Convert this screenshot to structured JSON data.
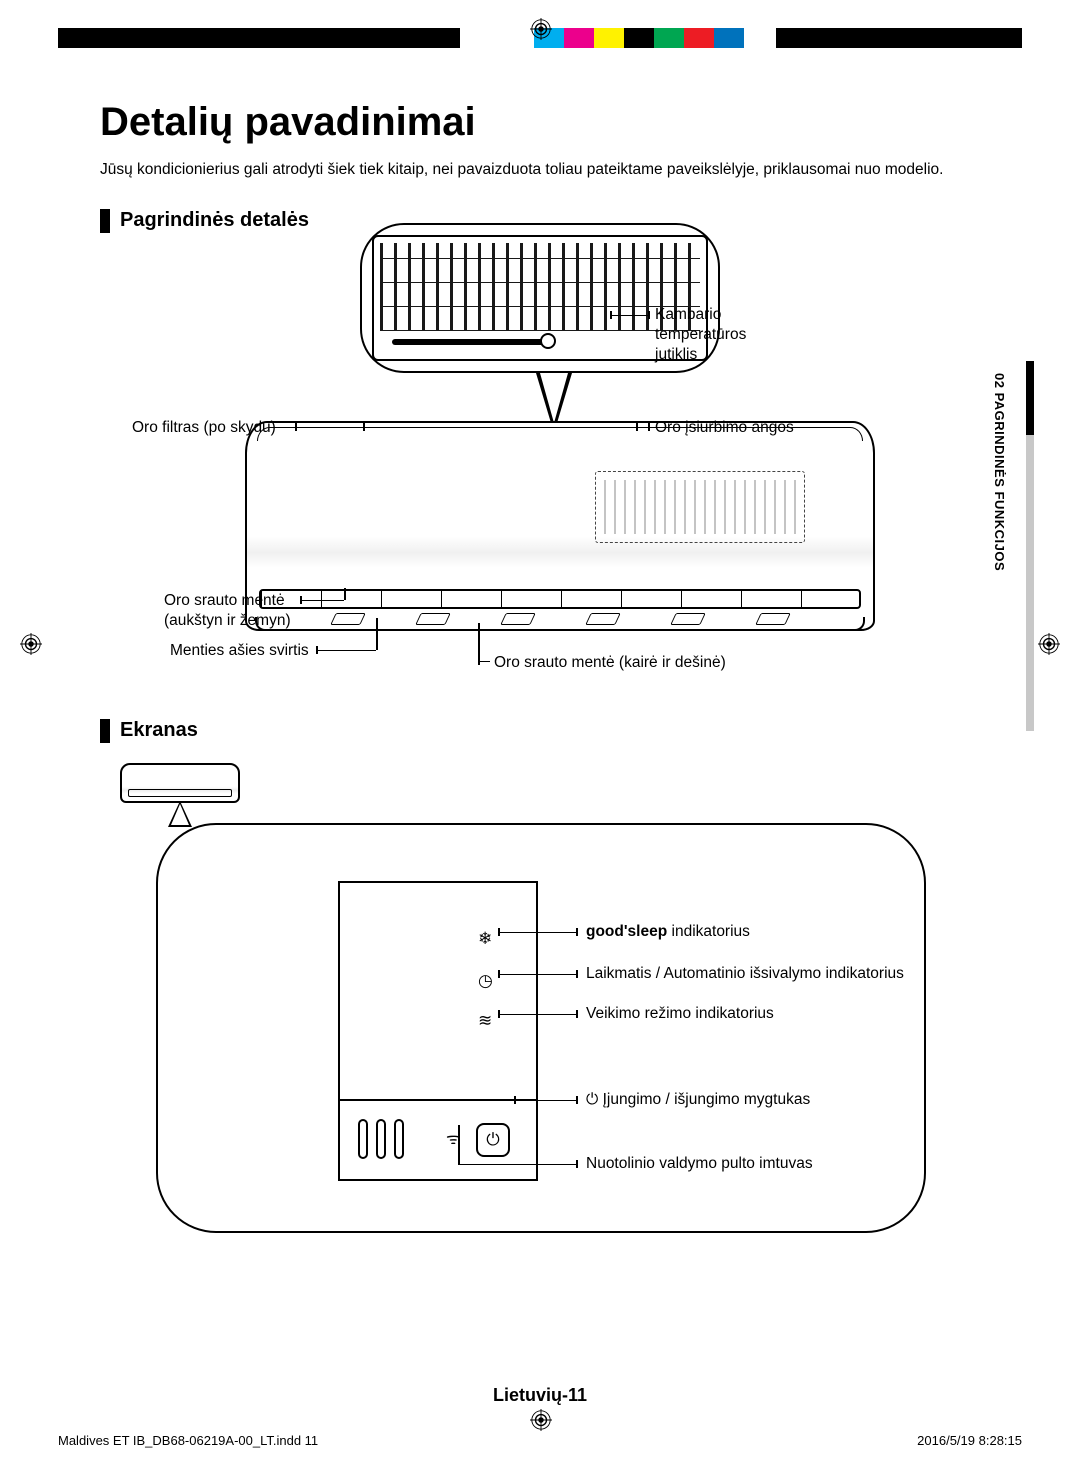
{
  "reg_colors": [
    "#000000",
    "#000000",
    "#ffffff",
    "#000000",
    "#000000",
    "#ffffff",
    "#00aeef",
    "#ec008c",
    "#fff200",
    "#000000",
    "#00a651",
    "#ed1c24",
    "#0072bc",
    "#ffffff",
    "#000000",
    "#000000"
  ],
  "title": "Detalių pavadinimai",
  "intro": "Jūsų kondicionierius gali atrodyti šiek tiek kitaip, nei pavaizduota toliau pateiktame paveikslėlyje, priklausomai nuo modelio.",
  "section1_title": "Pagrindinės detalės",
  "side_tab": "02  PAGRINDINĖS FUNKCIJOS",
  "labels": {
    "air_filter": "Oro filtras (po skydu)",
    "temp_sensor_l1": "Kambario",
    "temp_sensor_l2": "temperatūros",
    "temp_sensor_l3": "jutiklis",
    "air_intake": "Oro įsiurbimo angos",
    "blade_ud_l1": "Oro srauto mentė",
    "blade_ud_l2": "(aukštyn ir žemyn)",
    "axis_lever": "Menties ašies svirtis",
    "blade_lr": "Oro srauto mentė (kairė ir dešinė)"
  },
  "section2_title": "Ekranas",
  "display": {
    "goodsleep_bold": "good'sleep",
    "goodsleep_rest": " indikatorius",
    "timer": "Laikmatis / Automatinio išsivalymo indikatorius",
    "mode": "Veikimo režimo indikatorius",
    "power": "Įjungimo / išjungimo mygtukas",
    "receiver": "Nuotolinio valdymo pulto imtuvas",
    "icons": {
      "sleep": "❄",
      "timer": "◷",
      "mode": "≋",
      "wifi": "ᯤ",
      "power": "⏻"
    }
  },
  "page_number": "Lietuvių-11",
  "footer_left": "Maldives ET IB_DB68-06219A-00_LT.indd   11",
  "footer_right": "2016/5/19   8:28:15"
}
